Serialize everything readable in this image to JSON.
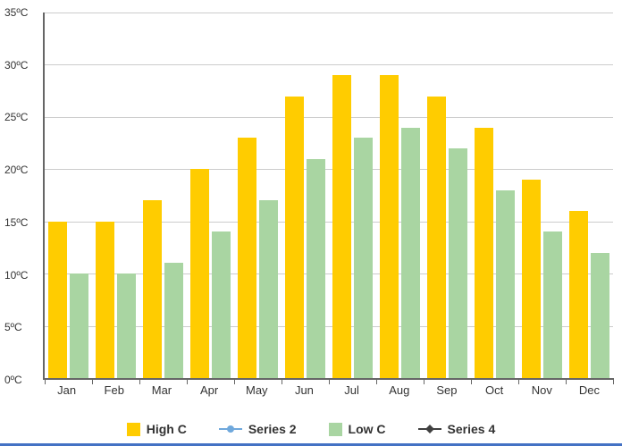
{
  "chart_data": {
    "type": "bar",
    "title": "",
    "categories": [
      "Jan",
      "Feb",
      "Mar",
      "Apr",
      "May",
      "Jun",
      "Jul",
      "Aug",
      "Sep",
      "Oct",
      "Nov",
      "Dec"
    ],
    "series": [
      {
        "name": "High C",
        "type": "bar",
        "marker": "square",
        "color": "#FFCC00",
        "values": [
          15,
          15,
          17,
          20,
          23,
          27,
          29,
          29,
          27,
          24,
          19,
          16
        ]
      },
      {
        "name": "Series 2",
        "type": "line",
        "marker": "circle",
        "color": "#6FA8DC",
        "values": []
      },
      {
        "name": "Low C",
        "type": "bar",
        "marker": "square",
        "color": "#A9D5A2",
        "values": [
          10,
          10,
          11,
          14,
          17,
          21,
          23,
          24,
          22,
          18,
          14,
          12
        ]
      },
      {
        "name": "Series 4",
        "type": "line",
        "marker": "diamond",
        "color": "#404040",
        "values": []
      }
    ],
    "ylim": [
      0,
      35
    ],
    "ytick_step": 5,
    "yticks": [
      "0ºC",
      "5ºC",
      "10ºC",
      "15ºC",
      "20ºC",
      "25ºC",
      "30ºC",
      "35ºC"
    ],
    "grid": true,
    "legend_position": "bottom"
  },
  "colors": {
    "axis": "#666666",
    "grid": "#CCCCCC",
    "text": "#333333",
    "bottom_rule": "#4472C4"
  }
}
